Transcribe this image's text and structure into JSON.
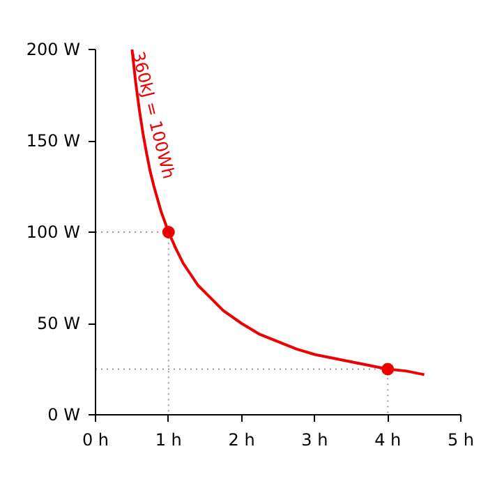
{
  "chart_data": {
    "type": "line",
    "xlim": [
      0,
      5
    ],
    "ylim": [
      0,
      200
    ],
    "xticks": [
      {
        "value": 0,
        "label": "0 h"
      },
      {
        "value": 1,
        "label": "1 h"
      },
      {
        "value": 2,
        "label": "2 h"
      },
      {
        "value": 3,
        "label": "3 h"
      },
      {
        "value": 4,
        "label": "4 h"
      },
      {
        "value": 5,
        "label": "5 h"
      }
    ],
    "yticks": [
      {
        "value": 0,
        "label": "0 W"
      },
      {
        "value": 50,
        "label": "50 W"
      },
      {
        "value": 100,
        "label": "100 W"
      },
      {
        "value": 150,
        "label": "150 W"
      },
      {
        "value": 200,
        "label": "200 W"
      }
    ],
    "grid": false,
    "series": [
      {
        "color": "#999999",
        "line_style": "dotted",
        "marker": "none",
        "x": [
          0,
          1,
          1
        ],
        "values": [
          100,
          100,
          0
        ]
      },
      {
        "color": "#999999",
        "line_style": "dotted",
        "marker": "none",
        "x": [
          0,
          4,
          4
        ],
        "values": [
          25,
          25,
          0
        ]
      },
      {
        "color": "#ee0000",
        "line_style": "solid",
        "marker": "none",
        "x": [
          0.5,
          0.55,
          0.6,
          0.65,
          0.7,
          0.75,
          0.8,
          0.9,
          1,
          1.1,
          1.2,
          1.3,
          1.4,
          1.5,
          1.75,
          2,
          2.25,
          2.5,
          2.75,
          3,
          3.25,
          3.5,
          3.75,
          4,
          4.25,
          4.5
        ],
        "values": [
          200,
          182,
          167,
          154,
          143,
          133,
          125,
          111,
          100,
          91,
          83,
          77,
          71,
          67,
          57,
          50,
          44,
          40,
          36,
          33,
          31,
          29,
          27,
          25,
          24,
          22
        ]
      },
      {
        "type": "scatter",
        "color": "#ee0000",
        "marker": "circle",
        "x": [
          1,
          4
        ],
        "values": [
          100,
          25
        ]
      }
    ],
    "annotations": [
      "360kJ = 100Wh"
    ]
  }
}
